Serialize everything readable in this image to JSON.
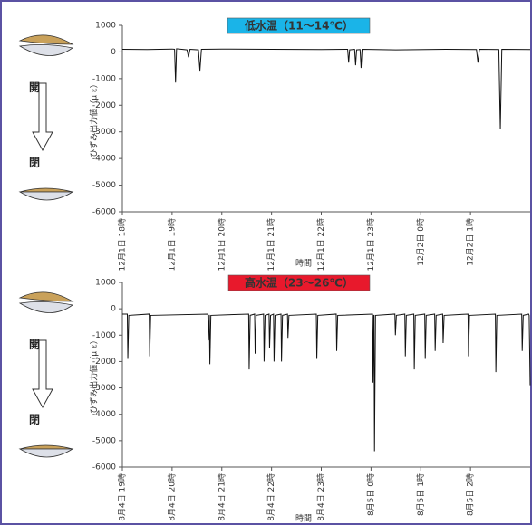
{
  "chart_data": [
    {
      "type": "line",
      "title": "低水温（11～14℃）",
      "title_color": "#1ab4e8",
      "title_text_color": "#000000",
      "ylabel": "ひずみ出力値（μ ε）",
      "xlabel": "時間",
      "annotations": [
        "開",
        "閉"
      ],
      "ylim": [
        -6000,
        1000
      ],
      "yticks": [
        1000,
        0,
        -1000,
        -2000,
        -3000,
        -4000,
        -5000,
        -6000
      ],
      "xlim": [
        0,
        8.2
      ],
      "xticks": [
        {
          "value": 0,
          "label": "12月1日 18時"
        },
        {
          "value": 1,
          "label": "12月1日 19時"
        },
        {
          "value": 2,
          "label": "12月1日 20時"
        },
        {
          "value": 3,
          "label": "12月1日 21時"
        },
        {
          "value": 4,
          "label": "12月1日 22時"
        },
        {
          "value": 5,
          "label": "12月1日 23時"
        },
        {
          "value": 6,
          "label": "12月2日 0時"
        },
        {
          "value": 7,
          "label": "12月2日 1時"
        }
      ],
      "series": [
        {
          "color": "#111111",
          "x": [
            0,
            0.5,
            1.0,
            1.05,
            1.07,
            1.09,
            1.3,
            1.33,
            1.36,
            1.53,
            1.56,
            1.59,
            2.0,
            3.0,
            4.0,
            4.53,
            4.55,
            4.57,
            4.67,
            4.69,
            4.71,
            4.78,
            4.8,
            4.82,
            5.5,
            6.5,
            7.12,
            7.15,
            7.18,
            7.57,
            7.6,
            7.63,
            8.2
          ],
          "values": [
            100,
            90,
            110,
            100,
            -1150,
            120,
            80,
            -200,
            100,
            80,
            -700,
            100,
            110,
            100,
            90,
            100,
            -400,
            80,
            100,
            -500,
            80,
            90,
            -600,
            100,
            80,
            100,
            90,
            -400,
            100,
            90,
            -2900,
            100,
            90
          ]
        }
      ]
    },
    {
      "type": "line",
      "title": "高水温（23～26℃）",
      "title_color": "#e8192c",
      "title_text_color": "#ffffff",
      "ylabel": "ひずみ出力値（μ ε）",
      "xlabel": "時間",
      "annotations": [
        "開",
        "閉"
      ],
      "ylim": [
        -6000,
        1000
      ],
      "yticks": [
        1000,
        0,
        -1000,
        -2000,
        -3000,
        -4000,
        -5000,
        -6000
      ],
      "xlim": [
        0,
        8.2
      ],
      "xticks": [
        {
          "value": 0,
          "label": "8月4日 19時"
        },
        {
          "value": 1,
          "label": "8月4日 20時"
        },
        {
          "value": 2,
          "label": "8月4日 21時"
        },
        {
          "value": 3,
          "label": "8月4日 22時"
        },
        {
          "value": 4,
          "label": "8月4日 23時"
        },
        {
          "value": 5,
          "label": "8月5日 0時"
        },
        {
          "value": 6,
          "label": "8月5日 1時"
        },
        {
          "value": 7,
          "label": "8月5日 2時"
        }
      ],
      "series": [
        {
          "color": "#111111",
          "x": [
            0,
            0.1,
            0.11,
            0.13,
            0.54,
            0.55,
            0.57,
            1.72,
            1.73,
            1.745,
            1.75,
            1.76,
            1.78,
            2.54,
            2.55,
            2.57,
            2.66,
            2.67,
            2.69,
            2.84,
            2.85,
            2.87,
            2.95,
            2.96,
            2.98,
            3.04,
            3.05,
            3.07,
            3.19,
            3.2,
            3.22,
            3.32,
            3.33,
            3.35,
            3.9,
            3.91,
            3.93,
            4.3,
            4.31,
            4.33,
            5.03,
            5.04,
            5.055,
            5.06,
            5.07,
            5.09,
            5.48,
            5.49,
            5.51,
            5.68,
            5.69,
            5.71,
            5.86,
            5.87,
            5.89,
            6.08,
            6.09,
            6.11,
            6.28,
            6.29,
            6.31,
            6.44,
            6.45,
            6.47,
            6.95,
            6.96,
            6.98,
            7.5,
            7.51,
            7.53,
            8.03,
            8.04,
            8.06,
            8.17,
            8.18,
            8.2
          ],
          "values": [
            -200,
            -200,
            -1900,
            -250,
            -200,
            -1800,
            -250,
            -200,
            -1200,
            -250,
            -250,
            -2100,
            -250,
            -200,
            -2300,
            -250,
            -200,
            -1700,
            -250,
            -200,
            -2000,
            -250,
            -200,
            -1500,
            -250,
            -200,
            -2000,
            -250,
            -200,
            -2000,
            -250,
            -200,
            -1100,
            -250,
            -200,
            -1900,
            -250,
            -200,
            -1600,
            -250,
            -200,
            -2800,
            -250,
            -250,
            -5400,
            -250,
            -200,
            -1000,
            -250,
            -200,
            -1800,
            -250,
            -200,
            -2300,
            -250,
            -200,
            -1900,
            -250,
            -200,
            -1600,
            -250,
            -200,
            -1300,
            -250,
            -200,
            -1800,
            -250,
            -200,
            -2400,
            -250,
            -200,
            -1600,
            -250,
            -200,
            -250,
            -2900
          ]
        }
      ]
    }
  ]
}
